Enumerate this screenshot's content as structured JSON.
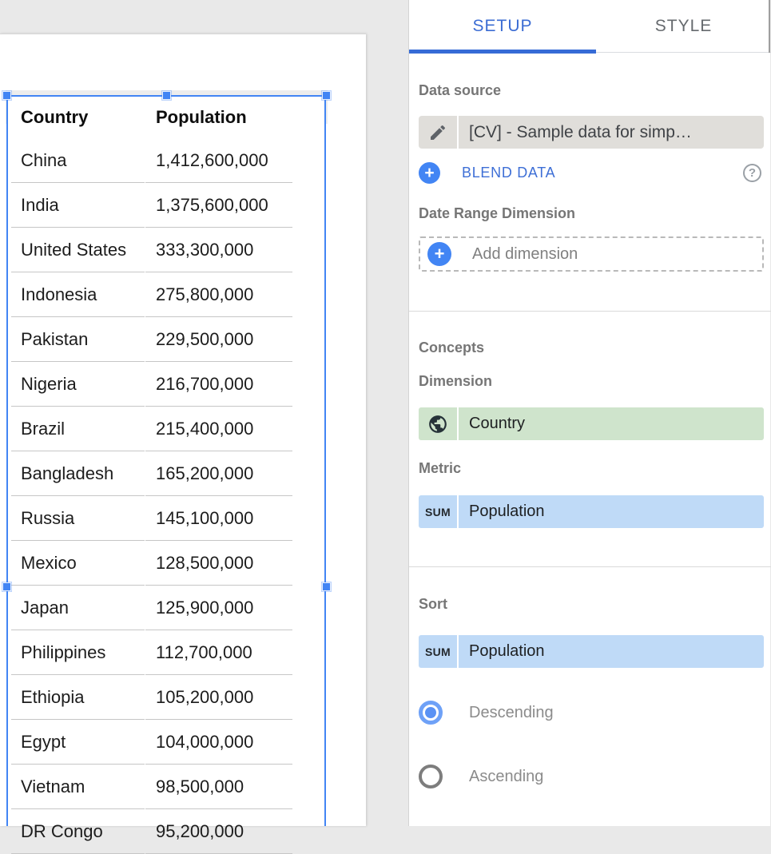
{
  "canvas": {
    "table": {
      "columns": [
        "Country",
        "Population"
      ],
      "rows": [
        [
          "China",
          "1,412,600,000"
        ],
        [
          "India",
          "1,375,600,000"
        ],
        [
          "United States",
          "333,300,000"
        ],
        [
          "Indonesia",
          "275,800,000"
        ],
        [
          "Pakistan",
          "229,500,000"
        ],
        [
          "Nigeria",
          "216,700,000"
        ],
        [
          "Brazil",
          "215,400,000"
        ],
        [
          "Bangladesh",
          "165,200,000"
        ],
        [
          "Russia",
          "145,100,000"
        ],
        [
          "Mexico",
          "128,500,000"
        ],
        [
          "Japan",
          "125,900,000"
        ],
        [
          "Philippines",
          "112,700,000"
        ],
        [
          "Ethiopia",
          "105,200,000"
        ],
        [
          "Egypt",
          "104,000,000"
        ],
        [
          "Vietnam",
          "98,500,000"
        ],
        [
          "DR Congo",
          "95,200,000"
        ]
      ]
    }
  },
  "panel": {
    "tabs": {
      "setup": "SETUP",
      "style": "STYLE"
    },
    "data_source": {
      "label": "Data source",
      "value": "[CV] - Sample data for simp…",
      "blend_label": "BLEND DATA",
      "plus_glyph": "+",
      "help_glyph": "?"
    },
    "date_range": {
      "label": "Date Range Dimension",
      "placeholder": "Add dimension",
      "plus_glyph": "+"
    },
    "concepts": {
      "label": "Concepts",
      "dimension_label": "Dimension",
      "dimension_value": "Country",
      "metric_label": "Metric",
      "metric_badge": "SUM",
      "metric_value": "Population"
    },
    "sort": {
      "label": "Sort",
      "badge": "SUM",
      "value": "Population",
      "descending_label": "Descending",
      "ascending_label": "Ascending",
      "selected": "Descending"
    }
  },
  "colors": {
    "selection_blue": "#4285f4",
    "tab_active_blue": "#3b6cd3",
    "blend_blue": "#3e6fd6",
    "dimension_green": "#cfe4cc",
    "metric_blue": "#bfdaf7",
    "data_source_gray": "#e0deda",
    "canvas_bg": "#ffffff",
    "workspace_bg": "#e9e9e9"
  }
}
